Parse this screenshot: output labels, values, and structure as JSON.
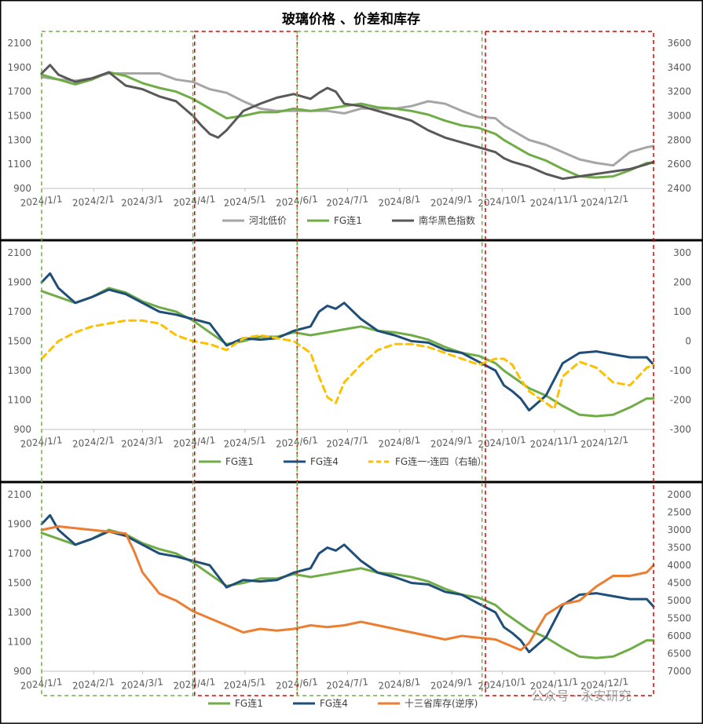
{
  "page_title": "玻璃价格 、价差和库存",
  "watermark": "公众号 · 永安研究",
  "colors": {
    "hebei": "#a6a6a6",
    "fg1": "#70ad47",
    "nanhua": "#595959",
    "fg4": "#1f4e79",
    "spread": "#ffc000",
    "inventory": "#ed7d31",
    "green_box": "#70ad47",
    "red_box": "#e00000",
    "panel_border": "#000000"
  },
  "chart_data": [
    {
      "type": "line",
      "title": "玻璃价格 、价差和库存",
      "x_ticks": [
        "2024/1/1",
        "2024/2/1",
        "2024/3/1",
        "2024/4/1",
        "2024/5/1",
        "2024/6/1",
        "2024/7/1",
        "2024/8/1",
        "2024/9/1",
        "2024/10/1",
        "2024/11/1",
        "2024/12/1"
      ],
      "x_range_days": [
        0,
        364
      ],
      "ylim_left": [
        900,
        2100
      ],
      "yticks_left": [
        900,
        1100,
        1300,
        1500,
        1700,
        1900,
        2100
      ],
      "ylim_right": [
        2400,
        3600
      ],
      "yticks_right": [
        2400,
        2600,
        2800,
        3000,
        3200,
        3400,
        3600
      ],
      "legend_position": "bottom",
      "series": [
        {
          "name": "河北低价",
          "key": "hebei",
          "axis": "left",
          "x": [
            0,
            10,
            20,
            30,
            40,
            50,
            60,
            70,
            80,
            90,
            100,
            110,
            120,
            130,
            140,
            150,
            160,
            170,
            180,
            190,
            200,
            210,
            220,
            230,
            240,
            250,
            260,
            270,
            275,
            280,
            285,
            290,
            300,
            310,
            320,
            330,
            340,
            350,
            360,
            364
          ],
          "y": [
            1820,
            1800,
            1790,
            1810,
            1850,
            1850,
            1850,
            1850,
            1800,
            1780,
            1720,
            1690,
            1620,
            1560,
            1540,
            1540,
            1540,
            1540,
            1520,
            1560,
            1560,
            1560,
            1580,
            1620,
            1600,
            1540,
            1490,
            1480,
            1420,
            1380,
            1340,
            1300,
            1260,
            1200,
            1140,
            1110,
            1090,
            1200,
            1240,
            1250
          ]
        },
        {
          "name": "FG连1",
          "key": "fg1",
          "axis": "left",
          "x": [
            0,
            10,
            20,
            30,
            40,
            50,
            60,
            70,
            80,
            90,
            100,
            110,
            120,
            130,
            140,
            150,
            160,
            170,
            180,
            190,
            200,
            210,
            220,
            230,
            240,
            250,
            260,
            270,
            275,
            280,
            285,
            290,
            300,
            310,
            320,
            330,
            340,
            350,
            360,
            364
          ],
          "y": [
            1840,
            1800,
            1760,
            1800,
            1860,
            1830,
            1770,
            1730,
            1700,
            1640,
            1560,
            1480,
            1500,
            1530,
            1530,
            1560,
            1540,
            1560,
            1580,
            1600,
            1570,
            1560,
            1540,
            1510,
            1460,
            1420,
            1400,
            1350,
            1300,
            1260,
            1220,
            1180,
            1130,
            1060,
            1000,
            990,
            1000,
            1050,
            1110,
            1110
          ]
        },
        {
          "name": "南华黑色指数",
          "key": "nanhua",
          "axis": "right",
          "x": [
            0,
            5,
            10,
            20,
            30,
            40,
            50,
            60,
            70,
            80,
            90,
            95,
            100,
            105,
            110,
            120,
            130,
            140,
            150,
            160,
            165,
            170,
            175,
            180,
            190,
            200,
            210,
            220,
            230,
            240,
            250,
            260,
            270,
            275,
            280,
            285,
            290,
            300,
            310,
            320,
            330,
            340,
            350,
            355,
            360,
            364
          ],
          "y": [
            3350,
            3420,
            3340,
            3280,
            3310,
            3360,
            3250,
            3220,
            3160,
            3120,
            3000,
            2920,
            2850,
            2820,
            2880,
            3040,
            3100,
            3150,
            3180,
            3140,
            3190,
            3230,
            3200,
            3100,
            3080,
            3040,
            3000,
            2960,
            2880,
            2820,
            2780,
            2740,
            2700,
            2650,
            2620,
            2600,
            2580,
            2520,
            2480,
            2500,
            2520,
            2540,
            2560,
            2580,
            2600,
            2620
          ]
        }
      ]
    },
    {
      "type": "line",
      "x_ticks": [
        "2024/1/1",
        "2024/2/1",
        "2024/3/1",
        "2024/4/1",
        "2024/5/1",
        "2024/6/1",
        "2024/7/1",
        "2024/8/1",
        "2024/9/1",
        "2024/10/1",
        "2024/11/1",
        "2024/12/1"
      ],
      "x_range_days": [
        0,
        364
      ],
      "ylim_left": [
        900,
        2100
      ],
      "yticks_left": [
        900,
        1100,
        1300,
        1500,
        1700,
        1900,
        2100
      ],
      "ylim_right": [
        -300,
        300
      ],
      "yticks_right": [
        -300,
        -200,
        -100,
        0,
        100,
        200,
        300
      ],
      "legend_position": "bottom",
      "series": [
        {
          "name": "FG连1",
          "key": "fg1",
          "axis": "left",
          "x": [
            0,
            10,
            20,
            30,
            40,
            50,
            60,
            70,
            80,
            90,
            100,
            110,
            120,
            130,
            140,
            150,
            160,
            170,
            180,
            190,
            200,
            210,
            220,
            230,
            240,
            250,
            260,
            270,
            275,
            280,
            285,
            290,
            300,
            310,
            320,
            330,
            340,
            350,
            360,
            364
          ],
          "y": [
            1840,
            1800,
            1760,
            1800,
            1860,
            1830,
            1770,
            1730,
            1700,
            1640,
            1560,
            1480,
            1500,
            1530,
            1530,
            1560,
            1540,
            1560,
            1580,
            1600,
            1570,
            1560,
            1540,
            1510,
            1460,
            1420,
            1400,
            1350,
            1300,
            1260,
            1220,
            1180,
            1130,
            1060,
            1000,
            990,
            1000,
            1050,
            1110,
            1110
          ]
        },
        {
          "name": "FG连4",
          "key": "fg4",
          "axis": "left",
          "x": [
            0,
            5,
            10,
            20,
            30,
            40,
            50,
            60,
            70,
            80,
            90,
            100,
            110,
            120,
            130,
            140,
            150,
            160,
            165,
            170,
            175,
            180,
            190,
            200,
            210,
            220,
            230,
            240,
            250,
            260,
            270,
            275,
            280,
            285,
            290,
            300,
            310,
            320,
            330,
            340,
            350,
            360,
            364
          ],
          "y": [
            1900,
            1960,
            1860,
            1760,
            1800,
            1850,
            1820,
            1760,
            1700,
            1680,
            1650,
            1620,
            1470,
            1520,
            1510,
            1520,
            1570,
            1600,
            1700,
            1740,
            1720,
            1760,
            1650,
            1570,
            1540,
            1500,
            1490,
            1440,
            1420,
            1360,
            1300,
            1200,
            1160,
            1110,
            1030,
            1130,
            1350,
            1420,
            1430,
            1410,
            1390,
            1390,
            1340
          ]
        },
        {
          "name": "FG连一-连四（右轴）",
          "key": "spread",
          "axis": "right",
          "dashed": true,
          "x": [
            0,
            10,
            20,
            30,
            40,
            50,
            60,
            70,
            80,
            90,
            100,
            110,
            120,
            130,
            140,
            150,
            160,
            165,
            170,
            175,
            180,
            190,
            200,
            210,
            220,
            230,
            240,
            250,
            260,
            270,
            275,
            280,
            285,
            290,
            300,
            305,
            310,
            320,
            330,
            340,
            350,
            360,
            364
          ],
          "y": [
            -60,
            0,
            30,
            50,
            60,
            70,
            70,
            60,
            20,
            0,
            -10,
            -30,
            10,
            20,
            10,
            0,
            -40,
            -120,
            -190,
            -210,
            -140,
            -80,
            -30,
            -10,
            -10,
            -20,
            -40,
            -60,
            -80,
            -60,
            -60,
            -80,
            -130,
            -170,
            -210,
            -230,
            -120,
            -70,
            -90,
            -140,
            -150,
            -90,
            -80
          ]
        }
      ]
    },
    {
      "type": "line",
      "x_ticks": [
        "2024/1/1",
        "2024/2/1",
        "2024/3/1",
        "2024/4/1",
        "2024/5/1",
        "2024/6/1",
        "2024/7/1",
        "2024/8/1",
        "2024/9/1",
        "2024/10/1",
        "2024/11/1",
        "2024/12/1"
      ],
      "x_range_days": [
        0,
        364
      ],
      "ylim_left": [
        900,
        2100
      ],
      "yticks_left": [
        900,
        1100,
        1300,
        1500,
        1700,
        1900,
        2100
      ],
      "ylim_right": [
        7000,
        2000
      ],
      "yticks_right": [
        2000,
        2500,
        3000,
        3500,
        4000,
        4500,
        5000,
        5500,
        6000,
        6500,
        7000
      ],
      "right_axis_reversed": true,
      "legend_position": "bottom",
      "series": [
        {
          "name": "FG连1",
          "key": "fg1",
          "axis": "left",
          "x": [
            0,
            10,
            20,
            30,
            40,
            50,
            60,
            70,
            80,
            90,
            100,
            110,
            120,
            130,
            140,
            150,
            160,
            170,
            180,
            190,
            200,
            210,
            220,
            230,
            240,
            250,
            260,
            270,
            275,
            280,
            285,
            290,
            300,
            310,
            320,
            330,
            340,
            350,
            360,
            364
          ],
          "y": [
            1840,
            1800,
            1760,
            1800,
            1860,
            1830,
            1770,
            1730,
            1700,
            1640,
            1560,
            1480,
            1500,
            1530,
            1530,
            1560,
            1540,
            1560,
            1580,
            1600,
            1570,
            1560,
            1540,
            1510,
            1460,
            1420,
            1400,
            1350,
            1300,
            1260,
            1220,
            1180,
            1130,
            1060,
            1000,
            990,
            1000,
            1050,
            1110,
            1110
          ]
        },
        {
          "name": "FG连4",
          "key": "fg4",
          "axis": "left",
          "x": [
            0,
            5,
            10,
            20,
            30,
            40,
            50,
            60,
            70,
            80,
            90,
            100,
            110,
            120,
            130,
            140,
            150,
            160,
            165,
            170,
            175,
            180,
            190,
            200,
            210,
            220,
            230,
            240,
            250,
            260,
            270,
            275,
            280,
            285,
            290,
            300,
            310,
            320,
            330,
            340,
            350,
            360,
            364
          ],
          "y": [
            1900,
            1960,
            1860,
            1760,
            1800,
            1850,
            1820,
            1760,
            1700,
            1680,
            1650,
            1620,
            1470,
            1520,
            1510,
            1520,
            1570,
            1600,
            1700,
            1740,
            1720,
            1760,
            1650,
            1570,
            1540,
            1500,
            1490,
            1440,
            1420,
            1360,
            1300,
            1200,
            1160,
            1110,
            1030,
            1130,
            1350,
            1420,
            1430,
            1410,
            1390,
            1390,
            1340
          ]
        },
        {
          "name": "十三省库存(逆序)",
          "key": "inventory",
          "axis": "right",
          "x": [
            0,
            10,
            20,
            30,
            40,
            50,
            55,
            60,
            70,
            80,
            90,
            100,
            110,
            120,
            130,
            140,
            150,
            160,
            170,
            180,
            190,
            200,
            210,
            220,
            230,
            240,
            250,
            260,
            270,
            275,
            280,
            285,
            290,
            300,
            310,
            320,
            330,
            340,
            350,
            360,
            364
          ],
          "y": [
            3000,
            2900,
            2950,
            3000,
            3050,
            3100,
            3600,
            4200,
            4800,
            5000,
            5300,
            5500,
            5700,
            5900,
            5800,
            5850,
            5800,
            5700,
            5750,
            5700,
            5600,
            5700,
            5800,
            5900,
            6000,
            6100,
            6000,
            6050,
            6100,
            6200,
            6300,
            6400,
            6200,
            5400,
            5100,
            5000,
            4600,
            4300,
            4300,
            4200,
            4000
          ]
        }
      ]
    }
  ],
  "panels": [
    {
      "id": "panel-1",
      "legend": [
        "河北低价",
        "FG连1",
        "南华黑色指数"
      ]
    },
    {
      "id": "panel-2",
      "legend": [
        "FG连1",
        "FG连4",
        "FG连一-连四（右轴）"
      ]
    },
    {
      "id": "panel-3",
      "legend": [
        "FG连1",
        "FG连4",
        "十三省库存(逆序)"
      ]
    }
  ],
  "highlight_boxes": [
    {
      "color": "green",
      "x_start_day": 0,
      "x_end_day": 90
    },
    {
      "color": "red",
      "x_start_day": 91,
      "x_end_day": 152
    },
    {
      "color": "green",
      "x_start_day": 152,
      "x_end_day": 262
    },
    {
      "color": "red",
      "x_start_day": 264,
      "x_end_day": 364
    }
  ]
}
